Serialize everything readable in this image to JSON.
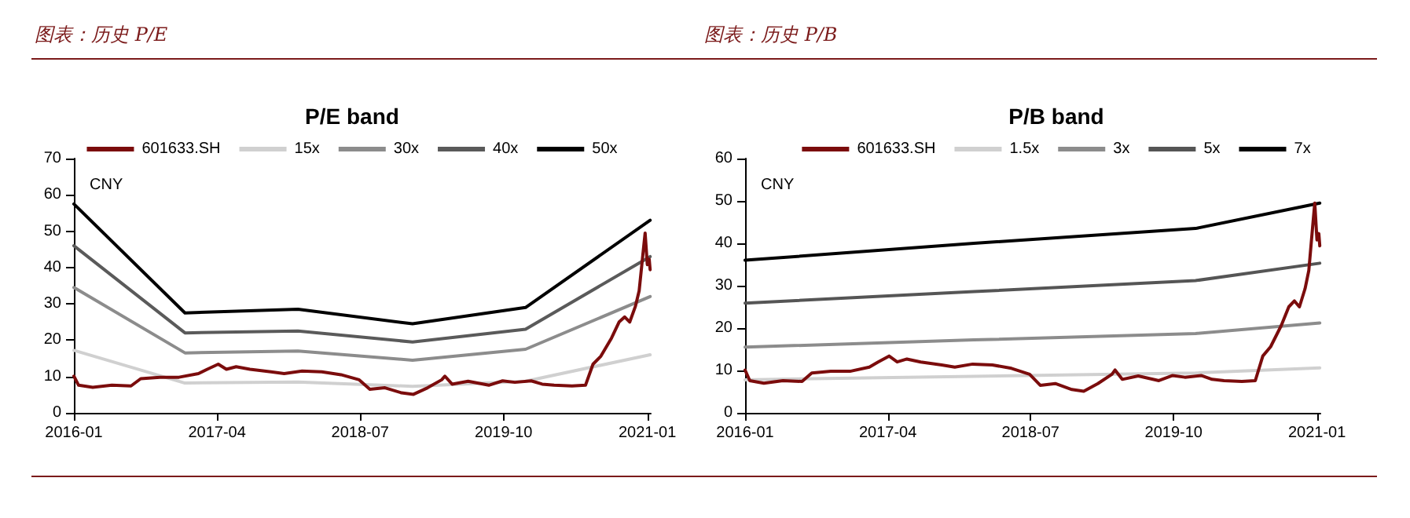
{
  "chart_data": [
    {
      "type": "line",
      "title": "图表：历史 P/E",
      "subtitle": "P/E band",
      "ylabel": "CNY",
      "legend": "top",
      "grid": false,
      "xlim": [
        "2016-01-01",
        "2021-01-12"
      ],
      "xticks": [
        "2016-01",
        "2017-04",
        "2018-07",
        "2019-10",
        "2021-01"
      ],
      "ylim": [
        0,
        70
      ],
      "yticks": [
        0,
        10,
        20,
        30,
        40,
        50,
        60,
        70
      ],
      "series": [
        {
          "name": "601633.SH",
          "color": "#7b0c0c",
          "x": [
            "2016-01-01",
            "2016-01-16",
            "2016-03-01",
            "2016-05-01",
            "2016-07-01",
            "2016-08-01",
            "2016-10-01",
            "2016-12-01",
            "2017-02-01",
            "2017-03-01",
            "2017-04-05",
            "2017-05-01",
            "2017-06-01",
            "2017-07-15",
            "2017-09-20",
            "2017-11-01",
            "2017-12-28",
            "2018-03-01",
            "2018-05-01",
            "2018-06-28",
            "2018-08-01",
            "2018-09-18",
            "2018-11-10",
            "2018-12-18",
            "2019-02-01",
            "2019-03-18",
            "2019-03-28",
            "2019-04-20",
            "2019-06-10",
            "2019-08-15",
            "2019-09-28",
            "2019-11-06",
            "2019-12-28",
            "2020-02-01",
            "2020-03-10",
            "2020-05-06",
            "2020-06-18",
            "2020-07-12",
            "2020-08-06",
            "2020-09-09",
            "2020-10-03",
            "2020-10-21",
            "2020-11-06",
            "2020-11-24",
            "2020-12-06",
            "2020-12-18",
            "2020-12-25",
            "2021-01-01",
            "2021-01-07",
            "2021-01-10"
          ],
          "values": [
            10.1,
            7.6,
            7,
            7.6,
            7.4,
            9.4,
            9.8,
            9.8,
            10.8,
            12,
            13.4,
            12,
            12.7,
            12,
            11.3,
            10.8,
            11.5,
            11.3,
            10.5,
            9.1,
            6.5,
            6.9,
            5.5,
            5.1,
            6.9,
            9.1,
            10.1,
            7.9,
            8.7,
            7.6,
            8.8,
            8.4,
            8.8,
            7.9,
            7.6,
            7.4,
            7.6,
            13.4,
            15.6,
            20.6,
            25,
            26.4,
            25,
            29.3,
            33.6,
            43.7,
            49.5,
            40.8,
            42.3,
            39.4
          ]
        },
        {
          "name": "15x",
          "color": "#d0d0d0",
          "x": [
            "2016-01-01",
            "2016-12-20",
            "2017-12-15",
            "2018-12-15",
            "2019-12-10",
            "2021-01-10"
          ],
          "values": [
            17.2,
            8.2,
            8.5,
            7.3,
            8.7,
            16
          ]
        },
        {
          "name": "30x",
          "color": "#8c8c8c",
          "x": [
            "2016-01-01",
            "2016-12-20",
            "2017-12-15",
            "2018-12-15",
            "2019-12-10",
            "2021-01-10"
          ],
          "values": [
            34.5,
            16.5,
            17,
            14.5,
            17.5,
            32
          ]
        },
        {
          "name": "40x",
          "color": "#5a5a5a",
          "x": [
            "2016-01-01",
            "2016-12-20",
            "2017-12-15",
            "2018-12-15",
            "2019-12-10",
            "2021-01-10"
          ],
          "values": [
            46,
            22,
            22.5,
            19.5,
            23,
            43
          ]
        },
        {
          "name": "50x",
          "color": "#000000",
          "x": [
            "2016-01-01",
            "2016-12-20",
            "2017-12-15",
            "2018-12-15",
            "2019-12-10",
            "2021-01-10"
          ],
          "values": [
            57.5,
            27.5,
            28.5,
            24.5,
            29,
            53
          ]
        }
      ]
    },
    {
      "type": "line",
      "title": "图表：历史 P/B",
      "subtitle": "P/B band",
      "ylabel": "CNY",
      "legend": "top",
      "grid": false,
      "xlim": [
        "2016-01-01",
        "2021-01-12"
      ],
      "xticks": [
        "2016-01",
        "2017-04",
        "2018-07",
        "2019-10",
        "2021-01"
      ],
      "ylim": [
        0,
        60
      ],
      "yticks": [
        0,
        10,
        20,
        30,
        40,
        50,
        60
      ],
      "series": [
        {
          "name": "601633.SH",
          "color": "#7b0c0c",
          "x": [
            "2016-01-01",
            "2016-01-16",
            "2016-03-01",
            "2016-05-01",
            "2016-07-01",
            "2016-08-01",
            "2016-10-01",
            "2016-12-01",
            "2017-02-01",
            "2017-03-01",
            "2017-04-05",
            "2017-05-01",
            "2017-06-01",
            "2017-07-15",
            "2017-09-20",
            "2017-11-01",
            "2017-12-28",
            "2018-03-01",
            "2018-05-01",
            "2018-06-28",
            "2018-08-01",
            "2018-09-18",
            "2018-11-10",
            "2018-12-18",
            "2019-02-01",
            "2019-03-18",
            "2019-03-28",
            "2019-04-20",
            "2019-06-10",
            "2019-08-15",
            "2019-09-28",
            "2019-11-06",
            "2019-12-28",
            "2020-02-01",
            "2020-03-10",
            "2020-05-06",
            "2020-06-18",
            "2020-07-12",
            "2020-08-06",
            "2020-09-09",
            "2020-10-03",
            "2020-10-21",
            "2020-11-06",
            "2020-11-24",
            "2020-12-06",
            "2020-12-18",
            "2020-12-25",
            "2021-01-01",
            "2021-01-07",
            "2021-01-10"
          ],
          "values": [
            10.1,
            7.6,
            7,
            7.6,
            7.4,
            9.4,
            9.8,
            9.8,
            10.8,
            12,
            13.4,
            12,
            12.7,
            12,
            11.3,
            10.8,
            11.5,
            11.3,
            10.5,
            9.1,
            6.5,
            6.9,
            5.5,
            5.1,
            6.9,
            9.1,
            10.1,
            7.9,
            8.7,
            7.6,
            8.8,
            8.4,
            8.8,
            7.9,
            7.6,
            7.4,
            7.6,
            13.4,
            15.6,
            20.6,
            25,
            26.4,
            25,
            29.3,
            33.6,
            43.7,
            49.5,
            40.8,
            42.3,
            39.4
          ]
        },
        {
          "name": "1.5x",
          "color": "#d0d0d0",
          "x": [
            "2016-01-01",
            "2018-01-01",
            "2019-12-10",
            "2021-01-10"
          ],
          "values": [
            7.8,
            8.6,
            9.4,
            10.6
          ]
        },
        {
          "name": "3x",
          "color": "#8c8c8c",
          "x": [
            "2016-01-01",
            "2018-01-01",
            "2019-12-10",
            "2021-01-10"
          ],
          "values": [
            15.5,
            17.2,
            18.7,
            21.2
          ]
        },
        {
          "name": "5x",
          "color": "#555555",
          "x": [
            "2016-01-01",
            "2018-01-01",
            "2019-12-10",
            "2021-01-10"
          ],
          "values": [
            25.9,
            28.6,
            31.2,
            35.3
          ]
        },
        {
          "name": "7x",
          "color": "#000000",
          "x": [
            "2016-01-01",
            "2018-01-01",
            "2019-12-10",
            "2021-01-10"
          ],
          "values": [
            36,
            40,
            43.5,
            49.5
          ]
        }
      ]
    }
  ]
}
